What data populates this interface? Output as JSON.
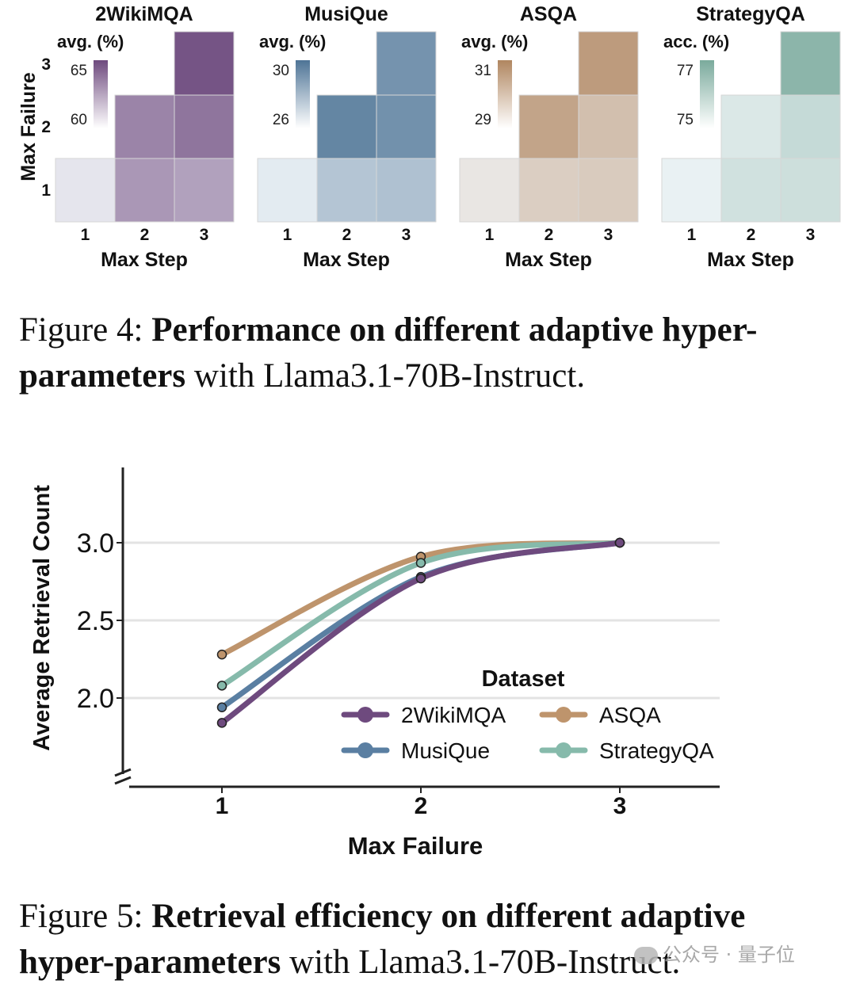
{
  "figure4": {
    "caption_label": "Figure 4:",
    "caption_bold": "Performance on different adaptive hyper-parameters",
    "caption_rest": " with Llama3.1-70B-Instruct."
  },
  "figure5": {
    "caption_label": "Figure 5:",
    "caption_bold": "Retrieval efficiency on different adaptive hyper-parameters",
    "caption_rest": " with Llama3.1-70B-Instruct."
  },
  "watermark": {
    "text": "公众号 · 量子位"
  },
  "chart_data": [
    {
      "type": "heatmap",
      "title": "2WikiMQA",
      "xlabel": "Max Step",
      "ylabel": "Max Failure",
      "x": [
        "1",
        "2",
        "3"
      ],
      "y": [
        "1",
        "2",
        "3"
      ],
      "colorbar_label": "avg. (%)",
      "colorbar_ticks": [
        "65",
        "60"
      ],
      "colorbar_range": [
        58,
        67
      ],
      "color": "#6e4a7e",
      "values": [
        [
          59.0,
          63.0,
          62.5
        ],
        [
          null,
          64.0,
          64.8
        ],
        [
          null,
          null,
          66.5
        ]
      ]
    },
    {
      "type": "heatmap",
      "title": "MusiQue",
      "xlabel": "Max Step",
      "ylabel": "Max Failure",
      "x": [
        "1",
        "2",
        "3"
      ],
      "y": [
        "1",
        "2",
        "3"
      ],
      "colorbar_label": "avg. (%)",
      "colorbar_ticks": [
        "30",
        "26"
      ],
      "colorbar_range": [
        25,
        31
      ],
      "color": "#4e7496",
      "values": [
        [
          25.6,
          27.3,
          27.5
        ],
        [
          null,
          30.2,
          29.7
        ],
        [
          null,
          null,
          29.6
        ]
      ]
    },
    {
      "type": "heatmap",
      "title": "ASQA",
      "xlabel": "Max Step",
      "ylabel": "Max Failure",
      "x": [
        "1",
        "2",
        "3"
      ],
      "y": [
        "1",
        "2",
        "3"
      ],
      "colorbar_label": "avg. (%)",
      "colorbar_ticks": [
        "31",
        "29"
      ],
      "colorbar_range": [
        27.8,
        31.6
      ],
      "color": "#b08660",
      "values": [
        [
          28.4,
          29.2,
          29.3
        ],
        [
          null,
          30.6,
          29.7
        ],
        [
          null,
          null,
          30.9
        ]
      ]
    },
    {
      "type": "heatmap",
      "title": "StrategyQA",
      "xlabel": "Max Step",
      "ylabel": "Max Failure",
      "x": [
        "1",
        "2",
        "3"
      ],
      "y": [
        "1",
        "2",
        "3"
      ],
      "colorbar_label": "acc. (%)",
      "colorbar_ticks": [
        "77",
        "75"
      ],
      "colorbar_range": [
        74.3,
        77.7
      ],
      "color": "#7aaa9c",
      "values": [
        [
          74.6,
          75.3,
          75.4
        ],
        [
          null,
          75.0,
          75.6
        ],
        [
          null,
          null,
          77.2
        ]
      ]
    },
    {
      "type": "line",
      "xlabel": "Max Failure",
      "ylabel": "Average Retrieval Count",
      "x": [
        1,
        2,
        3
      ],
      "xticks": [
        "1",
        "2",
        "3"
      ],
      "yticks": [
        "2.0",
        "2.5",
        "3.0"
      ],
      "ylim": [
        1.5,
        3.45
      ],
      "axis_break": true,
      "grid": true,
      "legend_title": "Dataset",
      "legend_position": "lower-right",
      "series": [
        {
          "name": "2WikiMQA",
          "color": "#6e4a7e",
          "values": [
            1.84,
            2.77,
            3.0
          ]
        },
        {
          "name": "MusiQue",
          "color": "#5a7fa2",
          "values": [
            1.94,
            2.78,
            3.0
          ]
        },
        {
          "name": "ASQA",
          "color": "#be946c",
          "values": [
            2.28,
            2.91,
            3.0
          ]
        },
        {
          "name": "StrategyQA",
          "color": "#86baab",
          "values": [
            2.08,
            2.87,
            3.0
          ]
        }
      ]
    }
  ]
}
